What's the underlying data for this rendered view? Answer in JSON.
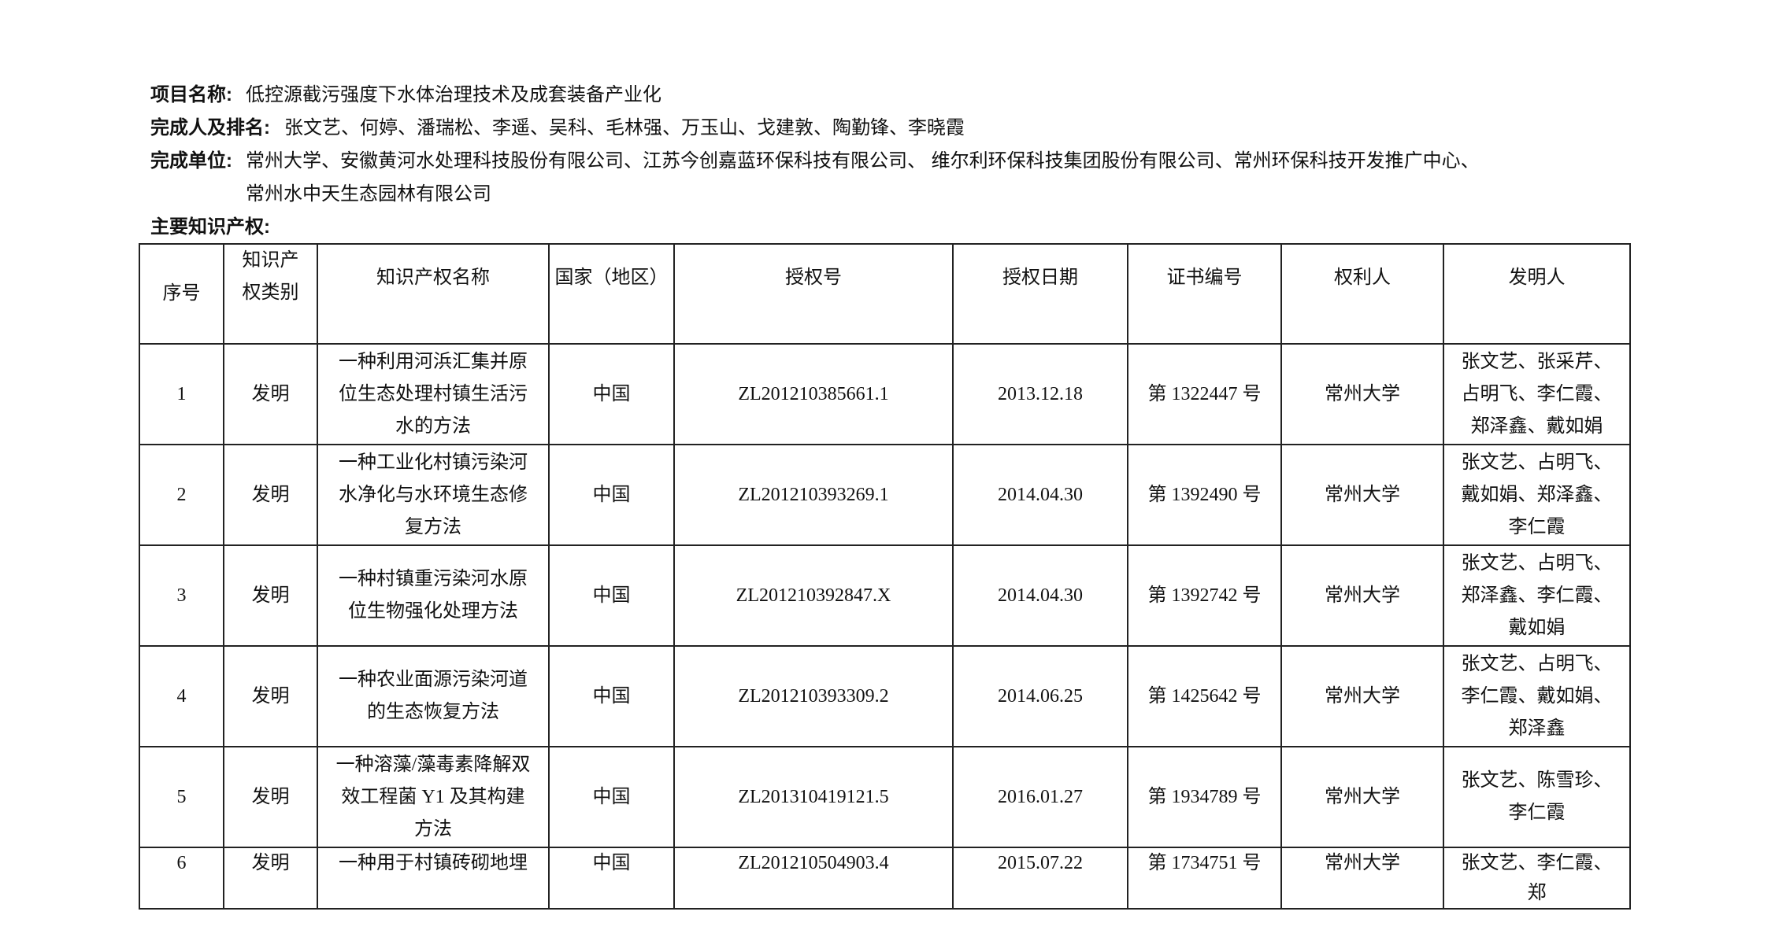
{
  "project": {
    "label": "项目名称:",
    "value": "低控源截污强度下水体治理技术及成套装备产业化"
  },
  "completers": {
    "label": "完成人及排名:",
    "value": "张文艺、何婷、潘瑞松、李遥、吴科、毛林强、万玉山、戈建敦、陶勤锋、李晓霞"
  },
  "units": {
    "label": "完成单位:",
    "value_line1": "常州大学、安徽黄河水处理科技股份有限公司、江苏今创嘉蓝环保科技有限公司、 维尔利环保科技集团股份有限公司、常州环保科技开发推广中心、",
    "value_line2": "常州水中天生态园林有限公司"
  },
  "ip_heading": "主要知识产权:",
  "table": {
    "headers": [
      "序号",
      "知识产权类别",
      "知识产权名称",
      "国家（地区）",
      "授权号",
      "授权日期",
      "证书编号",
      "权利人",
      "发明人"
    ],
    "rows": [
      [
        "1",
        "发明",
        "一种利用河浜汇集并原位生态处理村镇生活污水的方法",
        "中国",
        "ZL201210385661.1",
        "2013.12.18",
        "第 1322447 号",
        "常州大学",
        "张文艺、张采芹、占明飞、李仁霞、郑泽鑫、戴如娟"
      ],
      [
        "2",
        "发明",
        "一种工业化村镇污染河水净化与水环境生态修复方法",
        "中国",
        "ZL201210393269.1",
        "2014.04.30",
        "第 1392490 号",
        "常州大学",
        "张文艺、占明飞、戴如娟、郑泽鑫、李仁霞"
      ],
      [
        "3",
        "发明",
        "一种村镇重污染河水原位生物强化处理方法",
        "中国",
        "ZL201210392847.X",
        "2014.04.30",
        "第 1392742 号",
        "常州大学",
        "张文艺、占明飞、郑泽鑫、李仁霞、戴如娟"
      ],
      [
        "4",
        "发明",
        "一种农业面源污染河道的生态恢复方法",
        "中国",
        "ZL201210393309.2",
        "2014.06.25",
        "第 1425642 号",
        "常州大学",
        "张文艺、占明飞、李仁霞、戴如娟、郑泽鑫"
      ],
      [
        "5",
        "发明",
        "一种溶藻/藻毒素降解双效工程菌 Y1 及其构建方法",
        "中国",
        "ZL201310419121.5",
        "2016.01.27",
        "第 1934789 号",
        "常州大学",
        "张文艺、陈雪珍、李仁霞"
      ],
      [
        "6",
        "发明",
        "一种用于村镇砖砌地埋",
        "中国",
        "ZL201210504903.4",
        "2015.07.22",
        "第 1734751 号",
        "常州大学",
        "张文艺、李仁霞、郑"
      ]
    ]
  }
}
